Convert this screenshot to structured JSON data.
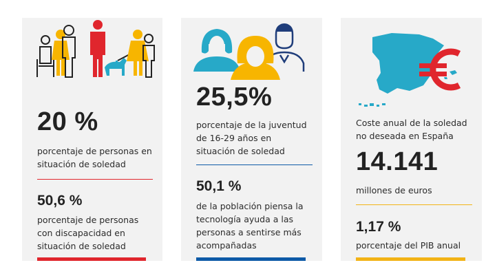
{
  "cards": [
    {
      "icon": "people-diverse-icon",
      "stat_main": "20 %",
      "stat_main_desc": "porcentaje de personas en situación de soledad",
      "stat_sub": "50,6 %",
      "stat_sub_desc": "porcentaje de personas con discapacidad en situación de soledad",
      "accent": "#e0262d"
    },
    {
      "icon": "people-group-icon",
      "stat_main": "25,5%",
      "stat_main_desc": "porcentaje de la juventud de 16-29 años en situación de soledad",
      "stat_sub": "50,1 %",
      "stat_sub_desc": "de la población piensa la tecnología ayuda a las personas a sentirse más acompañadas",
      "accent": "#0d5aa7"
    },
    {
      "icon": "spain-map-euro-icon",
      "intro": "Coste anual de la soledad no deseada en España",
      "stat_main": "14.141",
      "stat_main_desc": "millones de euros",
      "stat_sub": "1,17 %",
      "stat_sub_desc": "porcentaje del PIB anual",
      "accent": "#f2b316"
    }
  ]
}
